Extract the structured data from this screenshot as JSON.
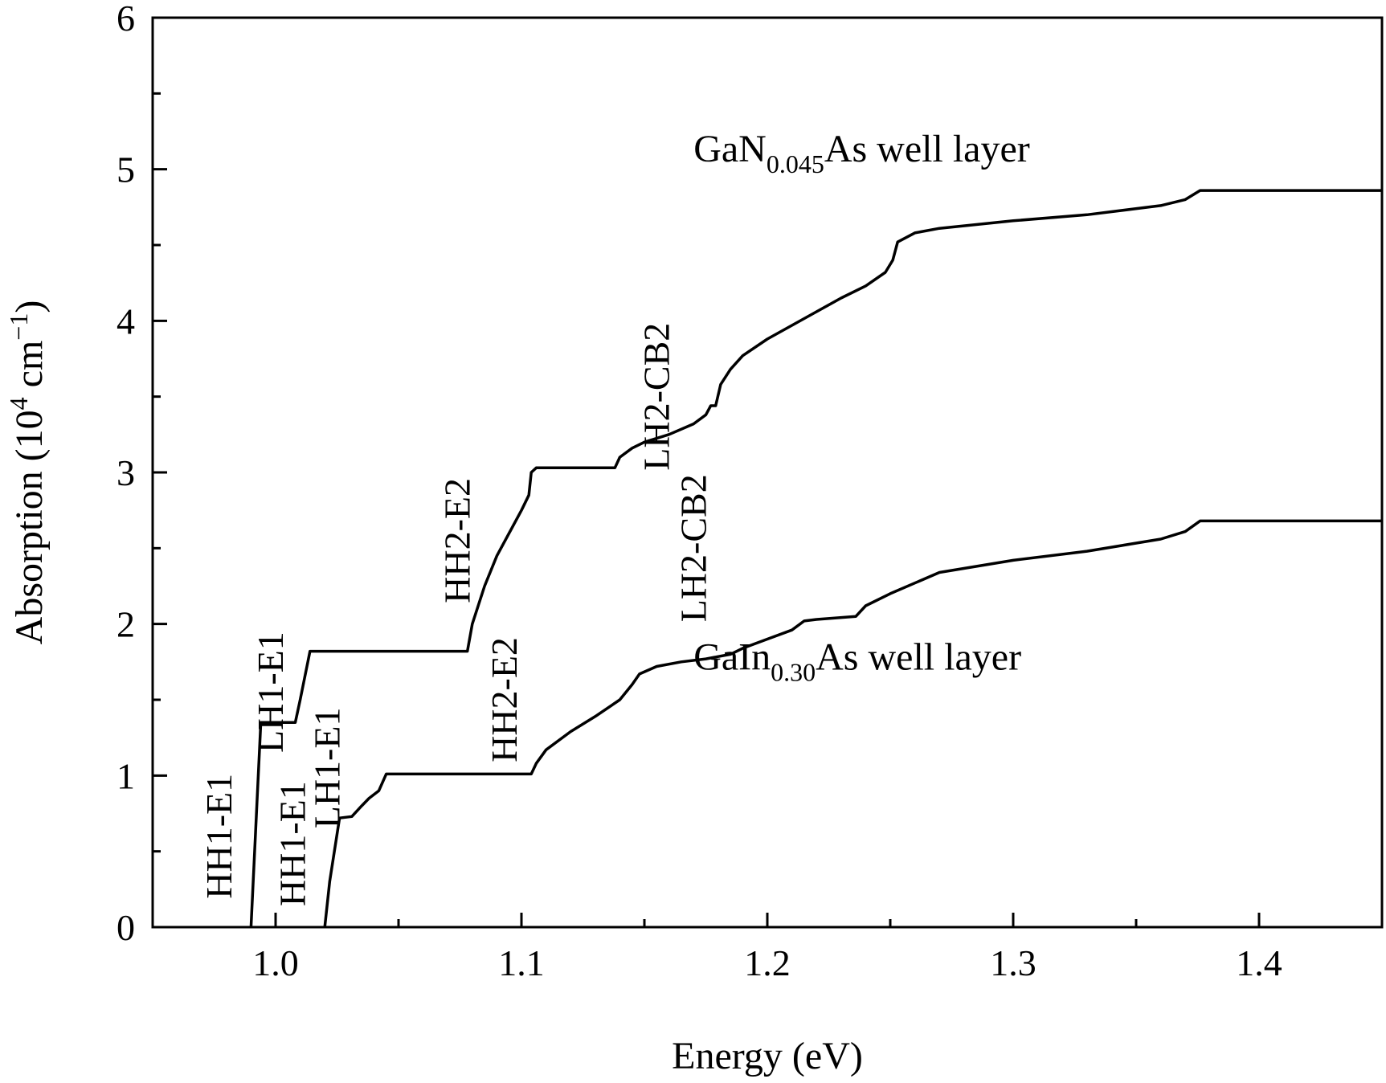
{
  "chart_data": {
    "type": "line",
    "title": "",
    "xlabel": "Energy (eV)",
    "ylabel_parts": {
      "before": "Absorption (10",
      "exp1": "4",
      "middle": " cm",
      "exp2": "−1",
      "after": ")"
    },
    "xlim": [
      0.95,
      1.45
    ],
    "ylim": [
      0,
      6
    ],
    "x_ticks": [
      1.0,
      1.1,
      1.2,
      1.3,
      1.4
    ],
    "x_tick_labels": [
      "1.0",
      "1.1",
      "1.2",
      "1.3",
      "1.4"
    ],
    "x_minor_ticks": [
      1.05,
      1.15,
      1.25,
      1.35
    ],
    "y_ticks": [
      0,
      1,
      2,
      3,
      4,
      5,
      6
    ],
    "y_tick_labels": [
      "0",
      "1",
      "2",
      "3",
      "4",
      "5",
      "6"
    ],
    "y_minor_ticks": [
      0.5,
      1.5,
      2.5,
      3.5,
      4.5,
      5.5
    ],
    "grid": false,
    "legend": "none",
    "series": [
      {
        "name": "GaN0.045As well layer",
        "label": {
          "base": "GaN",
          "sub": "0.045",
          "rest": "As well layer",
          "pos": [
            1.17,
            5.05
          ]
        },
        "x": [
          0.99,
          0.994,
          1.008,
          1.01,
          1.014,
          1.078,
          1.08,
          1.085,
          1.09,
          1.095,
          1.1,
          1.103,
          1.104,
          1.106,
          1.138,
          1.14,
          1.145,
          1.15,
          1.16,
          1.17,
          1.175,
          1.177,
          1.179,
          1.181,
          1.185,
          1.19,
          1.2,
          1.21,
          1.22,
          1.23,
          1.24,
          1.248,
          1.251,
          1.253,
          1.26,
          1.27,
          1.3,
          1.33,
          1.36,
          1.37,
          1.376,
          1.45
        ],
        "y": [
          0,
          1.35,
          1.35,
          1.5,
          1.82,
          1.82,
          2.0,
          2.25,
          2.45,
          2.6,
          2.75,
          2.85,
          3.0,
          3.03,
          3.03,
          3.1,
          3.16,
          3.2,
          3.25,
          3.32,
          3.38,
          3.44,
          3.44,
          3.58,
          3.68,
          3.77,
          3.88,
          3.97,
          4.06,
          4.15,
          4.23,
          4.32,
          4.4,
          4.52,
          4.58,
          4.61,
          4.66,
          4.7,
          4.76,
          4.8,
          4.86,
          4.86
        ]
      },
      {
        "name": "GaIn0.30As well layer",
        "label": {
          "base": "GaIn",
          "sub": "0.30",
          "rest": "As well layer",
          "pos": [
            1.17,
            1.7
          ]
        },
        "x": [
          1.02,
          1.022,
          1.026,
          1.031,
          1.035,
          1.038,
          1.042,
          1.045,
          1.104,
          1.106,
          1.11,
          1.12,
          1.13,
          1.14,
          1.145,
          1.148,
          1.155,
          1.165,
          1.175,
          1.185,
          1.19,
          1.2,
          1.21,
          1.215,
          1.22,
          1.236,
          1.24,
          1.25,
          1.26,
          1.27,
          1.3,
          1.33,
          1.36,
          1.37,
          1.376,
          1.45
        ],
        "y": [
          0,
          0.3,
          0.72,
          0.73,
          0.8,
          0.85,
          0.9,
          1.01,
          1.01,
          1.08,
          1.17,
          1.29,
          1.39,
          1.5,
          1.6,
          1.67,
          1.72,
          1.75,
          1.77,
          1.8,
          1.84,
          1.9,
          1.96,
          2.02,
          2.03,
          2.05,
          2.12,
          2.2,
          2.27,
          2.34,
          2.42,
          2.48,
          2.56,
          2.61,
          2.68,
          2.68
        ]
      }
    ],
    "annotations": [
      {
        "text": "HH1-E1",
        "x": 0.982,
        "y": 0.6
      },
      {
        "text": "LH1-E1",
        "x": 1.003,
        "y": 1.55
      },
      {
        "text": "HH1-E1",
        "x": 1.012,
        "y": 0.55
      },
      {
        "text": "LH1-E1",
        "x": 1.026,
        "y": 1.05
      },
      {
        "text": "HH2-E2",
        "x": 1.079,
        "y": 2.55
      },
      {
        "text": "HH2-E2",
        "x": 1.098,
        "y": 1.5
      },
      {
        "text": "LH2-CB2",
        "x": 1.16,
        "y": 3.5
      },
      {
        "text": "LH2-CB2",
        "x": 1.175,
        "y": 2.5
      }
    ]
  }
}
